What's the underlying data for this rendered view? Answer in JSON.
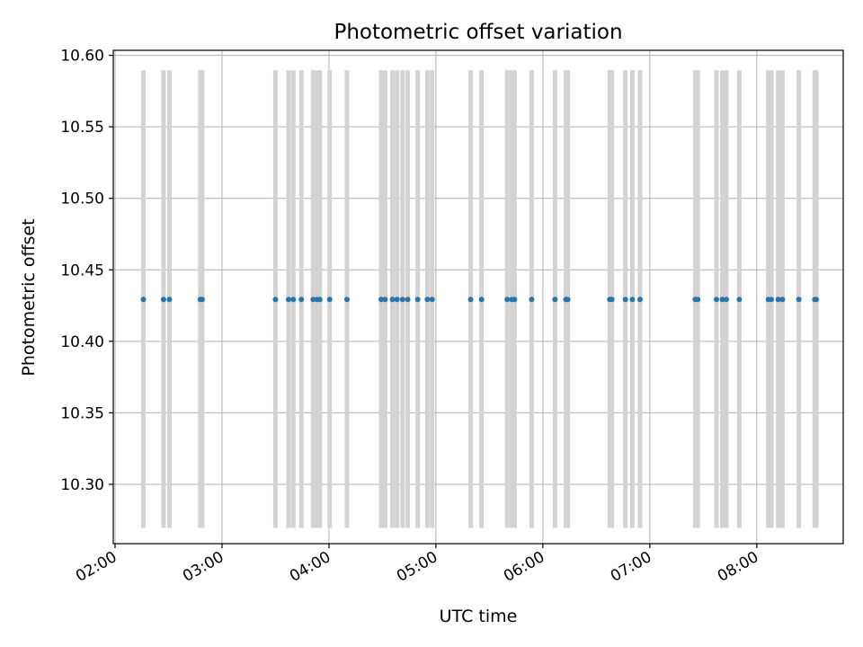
{
  "chart_data": {
    "type": "scatter",
    "title": "Photometric offset variation",
    "xlabel": "UTC time",
    "ylabel": "Photometric offset",
    "x_unit": "minutes after 00:00 UTC",
    "xlim": [
      119.0,
      528.5
    ],
    "ylim": [
      10.2585,
      10.6035
    ],
    "grid": true,
    "legend": "none",
    "x_ticks": [
      120,
      180,
      240,
      300,
      360,
      420,
      480
    ],
    "x_tick_labels": [
      "02:00",
      "03:00",
      "04:00",
      "05:00",
      "06:00",
      "07:00",
      "08:00"
    ],
    "y_ticks": [
      10.3,
      10.35,
      10.4,
      10.45,
      10.5,
      10.55,
      10.6
    ],
    "y_tick_labels": [
      "10.30",
      "10.35",
      "10.40",
      "10.45",
      "10.50",
      "10.55",
      "10.60"
    ],
    "errorbar_range": [
      10.2695,
      10.5895
    ],
    "colors": {
      "points": "#1f77b4",
      "errorbars": "#d3d3d3",
      "grid": "#b0b0b0",
      "axes": "#000000"
    },
    "series": [
      {
        "x": [
          135.9,
          147.2,
          150.5,
          167.8,
          168.9,
          210.0,
          217.3,
          220.0,
          224.5,
          231.1,
          233.3,
          234.9,
          240.4,
          250.1,
          269.3,
          271.5,
          275.6,
          278.2,
          281.3,
          284.2,
          289.8,
          295.2,
          297.9,
          319.5,
          325.6,
          340.0,
          342.6,
          344.1,
          353.7,
          366.8,
          372.9,
          374.0,
          397.5,
          398.7,
          406.3,
          410.2,
          414.5,
          445.5,
          446.9,
          457.4,
          460.7,
          462.9,
          470.2,
          486.5,
          488.2,
          492.0,
          494.4,
          503.6,
          512.5,
          513.4
        ],
        "y": [
          10.4293,
          10.4293,
          10.4293,
          10.4293,
          10.4293,
          10.4293,
          10.4293,
          10.4293,
          10.4293,
          10.4293,
          10.4293,
          10.4293,
          10.4293,
          10.4293,
          10.4293,
          10.4293,
          10.4293,
          10.4293,
          10.4293,
          10.4293,
          10.4293,
          10.4293,
          10.4293,
          10.4293,
          10.4293,
          10.4293,
          10.4293,
          10.4293,
          10.4293,
          10.4293,
          10.4293,
          10.4293,
          10.4293,
          10.4293,
          10.4293,
          10.4293,
          10.4293,
          10.4293,
          10.4293,
          10.4293,
          10.4293,
          10.4293,
          10.4293,
          10.4293,
          10.4293,
          10.4293,
          10.4293,
          10.4293,
          10.4293,
          10.4293
        ]
      }
    ]
  }
}
